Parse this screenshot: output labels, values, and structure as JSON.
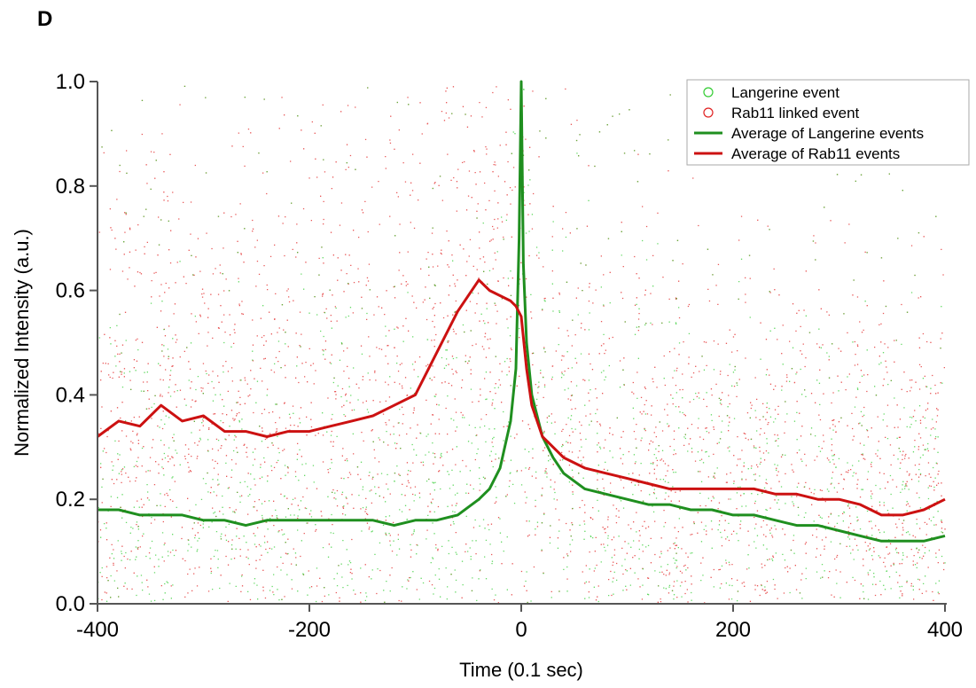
{
  "panel_label": "D",
  "chart_data": {
    "type": "scatter",
    "title": "",
    "xlabel": "Time (0.1 sec)",
    "ylabel": "Normalized Intensity (a.u.)",
    "xlim": [
      -400,
      400
    ],
    "ylim": [
      0.0,
      1.0
    ],
    "x_ticks": [
      -400,
      -200,
      0,
      200,
      400
    ],
    "x_tick_labels": [
      "-400",
      "-200",
      "0",
      "200",
      "400"
    ],
    "y_ticks": [
      0.0,
      0.2,
      0.4,
      0.6,
      0.8,
      1.0
    ],
    "y_tick_labels": [
      "0.0",
      "0.2",
      "0.4",
      "0.6",
      "0.8",
      "1.0"
    ],
    "grid": false,
    "legend_position": "top-right",
    "legend": [
      {
        "label": "Langerine event",
        "kind": "marker"
      },
      {
        "label": "Rab11 linked event",
        "kind": "marker"
      },
      {
        "label": "Average of Langerine events",
        "kind": "line"
      },
      {
        "label": "Average of Rab11 events",
        "kind": "line"
      }
    ],
    "colors": {
      "langerine_points": "#33cc33",
      "rab11_points": "#e02020",
      "langerine_avg": "#1f8f1f",
      "rab11_avg": "#cc1111"
    },
    "series": [
      {
        "name": "Average of Rab11 events",
        "type": "line",
        "x": [
          -400,
          -380,
          -360,
          -340,
          -320,
          -300,
          -280,
          -260,
          -240,
          -220,
          -200,
          -180,
          -160,
          -140,
          -120,
          -100,
          -80,
          -60,
          -40,
          -30,
          -20,
          -10,
          -5,
          0,
          5,
          10,
          20,
          30,
          40,
          60,
          80,
          100,
          120,
          140,
          160,
          180,
          200,
          220,
          240,
          260,
          280,
          300,
          320,
          340,
          360,
          380,
          400
        ],
        "y": [
          0.32,
          0.35,
          0.34,
          0.38,
          0.35,
          0.36,
          0.33,
          0.33,
          0.32,
          0.33,
          0.33,
          0.34,
          0.35,
          0.36,
          0.38,
          0.4,
          0.48,
          0.56,
          0.62,
          0.6,
          0.59,
          0.58,
          0.57,
          0.55,
          0.45,
          0.38,
          0.32,
          0.3,
          0.28,
          0.26,
          0.25,
          0.24,
          0.23,
          0.22,
          0.22,
          0.22,
          0.22,
          0.22,
          0.21,
          0.21,
          0.2,
          0.2,
          0.19,
          0.17,
          0.17,
          0.18,
          0.2
        ]
      },
      {
        "name": "Average of Langerine events",
        "type": "line",
        "x": [
          -400,
          -380,
          -360,
          -340,
          -320,
          -300,
          -280,
          -260,
          -240,
          -220,
          -200,
          -180,
          -160,
          -140,
          -120,
          -100,
          -80,
          -60,
          -40,
          -30,
          -20,
          -10,
          -5,
          -2,
          0,
          2,
          5,
          10,
          20,
          30,
          40,
          60,
          80,
          100,
          120,
          140,
          160,
          180,
          200,
          220,
          240,
          260,
          280,
          300,
          320,
          340,
          360,
          380,
          400
        ],
        "y": [
          0.18,
          0.18,
          0.17,
          0.17,
          0.17,
          0.16,
          0.16,
          0.15,
          0.16,
          0.16,
          0.16,
          0.16,
          0.16,
          0.16,
          0.15,
          0.16,
          0.16,
          0.17,
          0.2,
          0.22,
          0.26,
          0.35,
          0.45,
          0.7,
          1.0,
          0.65,
          0.5,
          0.4,
          0.32,
          0.28,
          0.25,
          0.22,
          0.21,
          0.2,
          0.19,
          0.19,
          0.18,
          0.18,
          0.17,
          0.17,
          0.16,
          0.15,
          0.15,
          0.14,
          0.13,
          0.12,
          0.12,
          0.12,
          0.13
        ]
      }
    ]
  }
}
